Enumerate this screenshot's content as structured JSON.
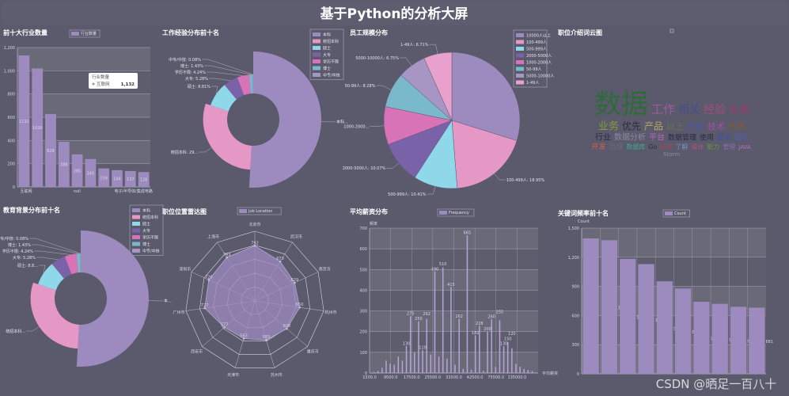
{
  "page": {
    "title": "基于Python的分析大屏",
    "watermark": "CSDN @晒足一百八十"
  },
  "colors": {
    "background": "#5b5a6c",
    "band_light": "#6a6978",
    "band_dark": "#5e5d6e",
    "palette": [
      "#9d8bc0",
      "#e597c6",
      "#8fd8ea",
      "#7a62a8",
      "#d873b8",
      "#7ab8cc",
      "#a795c4",
      "#e8a0cc"
    ]
  },
  "chart_data": [
    {
      "id": "industry",
      "type": "bar",
      "title": "前十大行业数量",
      "legend": [
        "行业数量"
      ],
      "categories": [
        "互联网",
        "",
        "",
        "",
        "null",
        "",
        "",
        "",
        "",
        "电子/半导体/集成电路"
      ],
      "values": [
        1132,
        1020,
        628,
        388,
        280,
        240,
        159,
        144,
        137,
        128
      ],
      "ylim": [
        0,
        1200
      ],
      "yticks": [
        "0",
        "200",
        "400",
        "600",
        "800",
        "1,000",
        "1,200"
      ],
      "grid": true,
      "tooltip": {
        "title": "行业数量",
        "name": "互联网",
        "value": "1,132"
      }
    },
    {
      "id": "experience",
      "type": "pie",
      "rose": true,
      "title": "工作经验分布前十名",
      "legend": [
        "本科",
        "统招本科",
        "硕士",
        "大专",
        "学历不限",
        "博士",
        "中专/中技"
      ],
      "values": [
        50.96,
        29.2,
        8.81,
        5.28,
        4.24,
        1.43,
        0.08
      ],
      "labels": [
        "本科...",
        "统招本科: 29...",
        "硕士: 8.81%",
        "大专: 5.28%",
        "学历不限: 4.24%",
        "博士: 1.43%",
        "中专/中技: 0.08%"
      ],
      "legend_position": "top-right"
    },
    {
      "id": "company_size",
      "type": "pie",
      "title": "员工规模分布",
      "legend": [
        "10000人以上",
        "100-499人",
        "500-999人",
        "2000-5000人",
        "1000-2000人",
        "50-99人",
        "5000-10000人",
        "1-49人"
      ],
      "values": [
        29.8,
        18.95,
        10.41,
        10.07,
        9.03,
        8.28,
        6.75,
        6.71
      ],
      "labels": [
        "",
        "100-499人: 18.95%",
        "500-999人: 10.41%",
        "2000-5000人: 10.07%",
        "1000-2000...",
        "50-99人: 8.28%",
        "5000-10000人: 6.75%",
        "1-49人: 6.71%"
      ],
      "legend_position": "top-right"
    },
    {
      "id": "wordcloud",
      "type": "wordcloud",
      "title": "职位介绍词云图",
      "words": [
        "数据",
        "工作",
        "相关",
        "经验",
        "负责",
        "业务",
        "优先",
        "产品",
        "以上",
        "行业",
        "数据分析",
        "数据管理",
        "使用",
        "分析",
        "要求",
        "技术",
        "管理",
        "数据库",
        "JAVA",
        "Go",
        "熟悉",
        "平台",
        "研究",
        "团队",
        "了解",
        "开发",
        "Storm",
        "治理",
        "设计",
        "能力"
      ]
    },
    {
      "id": "education",
      "type": "pie",
      "rose": true,
      "title": "教育背景分布前十名",
      "legend": [
        "本科",
        "统招本科",
        "硕士",
        "大专",
        "学历不限",
        "博士",
        "中专/中技"
      ],
      "values": [
        50.96,
        29.2,
        8.81,
        5.28,
        4.24,
        1.43,
        0.08
      ],
      "labels": [
        "本...",
        "统招本科...",
        "硕士: 8.8...",
        "大专: 5.28%",
        "学历不限: 4.24%",
        "博士: 1.43%",
        "中专/中技: 0.08%"
      ],
      "legend_position": "top-right"
    },
    {
      "id": "location",
      "type": "radar",
      "title": "职位位置雷达图",
      "legend": [
        "Job Location"
      ],
      "indicators": [
        "北京市",
        "武汉市",
        "南京市",
        "杭州市",
        "重庆市",
        "苏州市",
        "天津市",
        "西安市",
        "广州市",
        "深圳市",
        "上海市"
      ],
      "values": [
        792,
        673,
        629,
        650,
        608,
        583,
        563,
        577,
        727,
        726,
        743
      ],
      "max": 1000
    },
    {
      "id": "salary",
      "type": "bar",
      "title": "平均薪资分布",
      "legend": [
        "Frequency"
      ],
      "xlabel": "平均薪资",
      "ylabel": "频率",
      "xticks": [
        "1500.0",
        "9500.0",
        "17500.0",
        "25500.0",
        "33500.0",
        "42500.0",
        "75500.0",
        "135000.0"
      ],
      "values": [
        5,
        10,
        25,
        60,
        45,
        40,
        80,
        60,
        130,
        275,
        100,
        250,
        110,
        262,
        90,
        490,
        80,
        510,
        70,
        415,
        40,
        262,
        20,
        665,
        15,
        182,
        228,
        10,
        200,
        260,
        30,
        255,
        130,
        150,
        120,
        45,
        30,
        20,
        15,
        10
      ],
      "ylim": [
        0,
        700
      ],
      "yticks": [
        "0",
        "100",
        "200",
        "300",
        "400",
        "500",
        "600",
        "700"
      ],
      "grid": true
    },
    {
      "id": "keywords",
      "type": "bar",
      "title": "关键词频率前十名",
      "legend": [
        "Count"
      ],
      "ylabel": "Count",
      "values": [
        1394,
        1375,
        1184,
        1129,
        952,
        878,
        742,
        720,
        690,
        681
      ],
      "value_labels": [
        "",
        "1375",
        "1184",
        "1129",
        "952",
        "878",
        "742",
        "720",
        "690",
        "681"
      ],
      "ylim": [
        0,
        1500
      ],
      "yticks": [
        "0",
        "300",
        "600",
        "900",
        "1,200",
        "1,500"
      ],
      "grid": true
    }
  ]
}
